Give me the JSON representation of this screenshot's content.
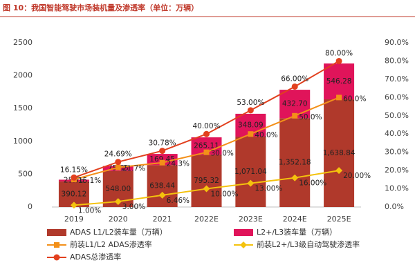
{
  "chart_data": {
    "type": "bar",
    "title": "图 10：我国智能驾驶市场装机量及渗透率（单位：万辆）",
    "categories": [
      "2019",
      "2020",
      "2021",
      "2022E",
      "2023E",
      "2024E",
      "2025E"
    ],
    "ylim": [
      0,
      2500
    ],
    "yticks": [
      0,
      500,
      1000,
      1500,
      2000,
      2500
    ],
    "y2lim": [
      0,
      90
    ],
    "y2ticks": [
      {
        "value": 0,
        "label": "0.0%"
      },
      {
        "value": 10,
        "label": "10.0%"
      },
      {
        "value": 20,
        "label": "20.0%"
      },
      {
        "value": 30,
        "label": "30.0%"
      },
      {
        "value": 40,
        "label": "40.0%"
      },
      {
        "value": 50,
        "label": "50.0%"
      },
      {
        "value": 60,
        "label": "60.0%"
      },
      {
        "value": 70,
        "label": "70.0%"
      },
      {
        "value": 80,
        "label": "80.0%"
      },
      {
        "value": 90,
        "label": "90.0%"
      }
    ],
    "grid": false,
    "stacked": true,
    "series": [
      {
        "name": "ADAS L1/L2装车量（万辆）",
        "type": "bar",
        "color": "#b0392b",
        "values": [
          390.12,
          548.0,
          638.44,
          795.32,
          1071.04,
          1352.18,
          1638.84
        ],
        "value_labels": [
          "390.12",
          "548.00",
          "638.44",
          "795.32",
          "1,071.04",
          "1,352.18",
          "1,638.84"
        ]
      },
      {
        "name": "L2+/L3装车量（万辆）",
        "type": "bar",
        "color": "#e0145a",
        "values": [
          25.76,
          75.65,
          169.45,
          265.11,
          348.09,
          432.7,
          546.28
        ],
        "value_labels": [
          "25.76",
          "75.65",
          "169.45",
          "265.11",
          "348.09",
          "432.70",
          "546.28"
        ]
      },
      {
        "name": "前装L1/L2 ADAS渗透率",
        "type": "line",
        "axis": "y2",
        "marker": "square",
        "color": "#f39019",
        "values": [
          15.1,
          21.7,
          24.3,
          30.0,
          40.0,
          50.0,
          60.0
        ],
        "value_labels": [
          "15.1%",
          "21.7%",
          "24.3%",
          "30.0%",
          "40.0%",
          "50.0%",
          "60.0%"
        ]
      },
      {
        "name": "前装L2+/L3级自动驾驶渗透率",
        "type": "line",
        "axis": "y2",
        "marker": "diamond",
        "color": "#f4c20d",
        "values": [
          1.0,
          3.0,
          6.46,
          10.0,
          13.0,
          16.0,
          20.0
        ],
        "value_labels": [
          "1.00%",
          "3.00%",
          "6.46%",
          "10.00%",
          "13.00%",
          "16.00%",
          "20.00%"
        ]
      },
      {
        "name": "ADAS总渗透率",
        "type": "line",
        "axis": "y2",
        "marker": "circle",
        "color": "#e2401e",
        "values": [
          16.15,
          24.69,
          30.78,
          40.0,
          53.0,
          66.0,
          80.0
        ],
        "value_labels": [
          "16.15%",
          "24.69%",
          "30.78%",
          "40.00%",
          "53.00%",
          "66.00%",
          "80.00%"
        ]
      }
    ]
  }
}
